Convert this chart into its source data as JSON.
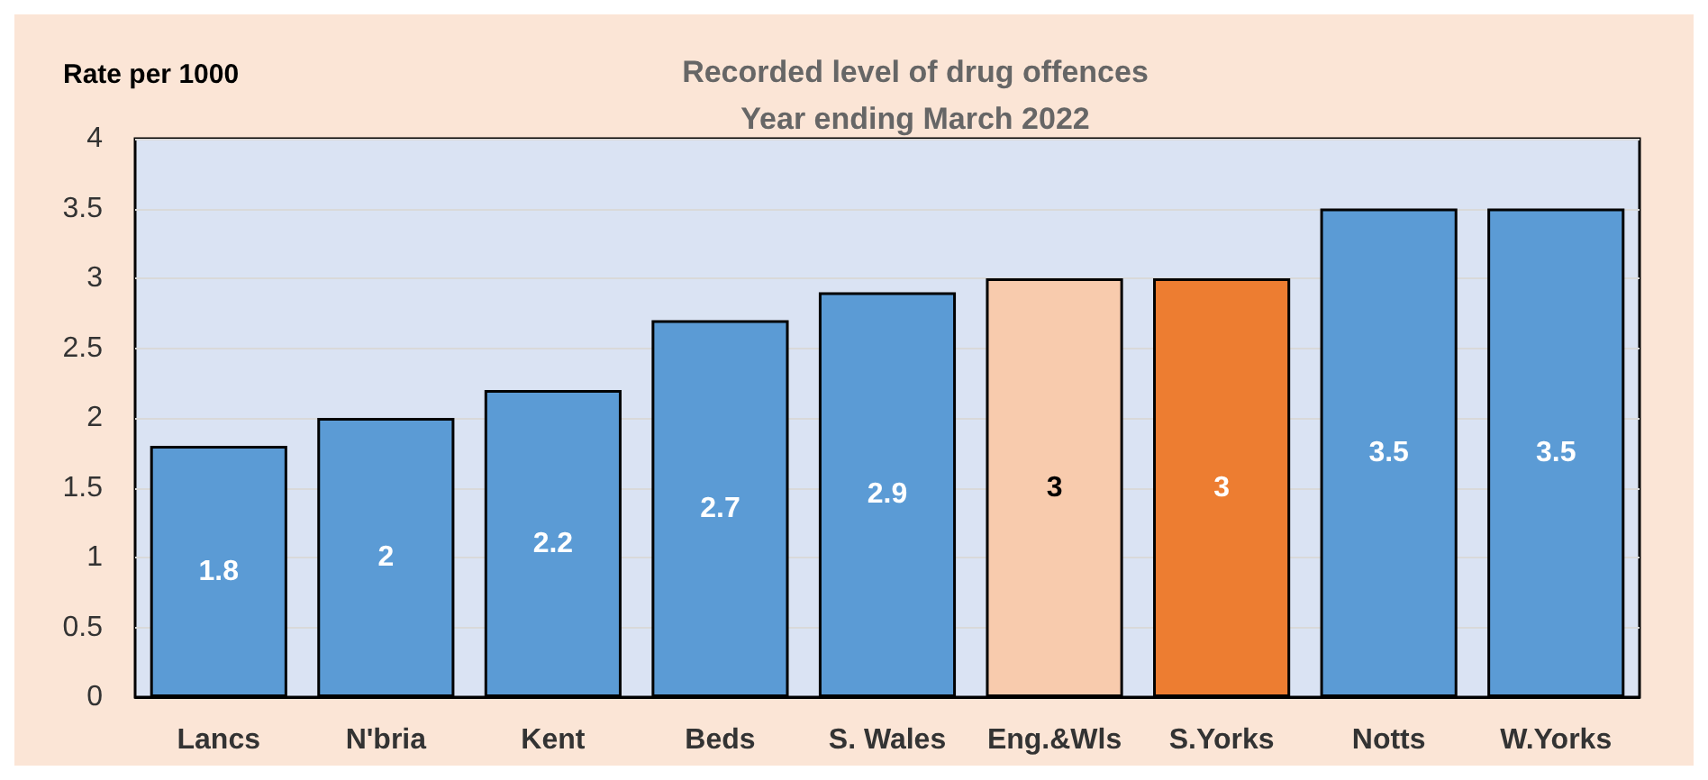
{
  "chart_data": {
    "type": "bar",
    "title": "Recorded level of drug offences\nYear ending March 2022",
    "ylabel": "Rate per 1000",
    "categories": [
      "Lancs",
      "N'bria",
      "Kent",
      "Beds",
      "S. Wales",
      "Eng.&Wls",
      "S.Yorks",
      "Notts",
      "W.Yorks"
    ],
    "values": [
      1.8,
      2,
      2.2,
      2.7,
      2.9,
      3,
      3,
      3.5,
      3.5
    ],
    "colors": [
      "#5b9bd5",
      "#5b9bd5",
      "#5b9bd5",
      "#5b9bd5",
      "#5b9bd5",
      "#f8cbad",
      "#ed7d31",
      "#5b9bd5",
      "#5b9bd5"
    ],
    "ylim": [
      0,
      4
    ],
    "yticks": [
      0,
      0.5,
      1,
      1.5,
      2,
      2.5,
      3,
      3.5,
      4
    ],
    "grid": "y",
    "data_labels": true
  }
}
